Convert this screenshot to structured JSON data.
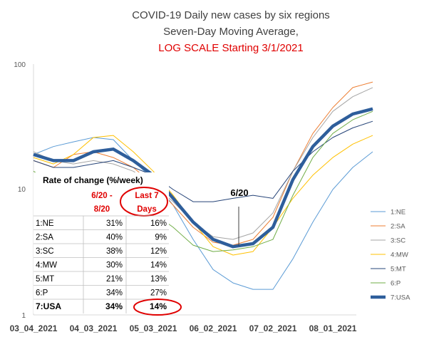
{
  "chart_data": {
    "type": "line",
    "title_lines": [
      "COVID-19 Daily new cases by six regions",
      "Seven-Day Moving Average,",
      "LOG SCALE Starting 3/1/2021"
    ],
    "title_colors": [
      "#404040",
      "#404040",
      "#e00000"
    ],
    "y_scale": "log",
    "ylim": [
      1,
      100
    ],
    "y_ticks": [
      "1",
      "10",
      "100"
    ],
    "x_ticks": [
      "03_04_2021",
      "04_03_2021",
      "05_03_2021",
      "06_02_2021",
      "07_02_2021",
      "08_01_2021"
    ],
    "x": [
      "2021-03-04",
      "2021-03-14",
      "2021-03-24",
      "2021-04-03",
      "2021-04-13",
      "2021-04-23",
      "2021-05-03",
      "2021-05-13",
      "2021-05-23",
      "2021-06-02",
      "2021-06-12",
      "2021-06-22",
      "2021-07-02",
      "2021-07-12",
      "2021-07-22",
      "2021-08-01",
      "2021-08-11",
      "2021-08-21"
    ],
    "series": [
      {
        "name": "1:NE",
        "color": "#5b9bd5",
        "width": 1,
        "values": [
          19.0,
          22.0,
          24.0,
          26.0,
          25.0,
          17.0,
          12.0,
          7.5,
          4.0,
          2.3,
          1.8,
          1.6,
          1.6,
          2.8,
          5.5,
          10.0,
          15.0,
          20.0
        ]
      },
      {
        "name": "2:SA",
        "color": "#ed7d31",
        "width": 1,
        "values": [
          17.0,
          15.0,
          19.0,
          20.0,
          18.0,
          15.0,
          11.0,
          7.5,
          5.0,
          3.8,
          3.6,
          4.0,
          6.0,
          14.0,
          28.0,
          45.0,
          65.0,
          72.0
        ]
      },
      {
        "name": "3:SC",
        "color": "#a5a5a5",
        "width": 1,
        "values": [
          20.0,
          17.0,
          16.0,
          17.0,
          16.0,
          14.0,
          11.0,
          8.0,
          5.5,
          4.2,
          4.0,
          4.5,
          6.5,
          14.0,
          26.0,
          42.0,
          55.0,
          65.0
        ]
      },
      {
        "name": "4:MW",
        "color": "#ffc000",
        "width": 1,
        "values": [
          18.0,
          16.0,
          19.0,
          26.0,
          27.0,
          20.0,
          14.0,
          9.0,
          5.5,
          3.5,
          3.0,
          3.2,
          5.0,
          8.5,
          13.0,
          18.0,
          23.0,
          27.0
        ]
      },
      {
        "name": "5:MT",
        "color": "#264478",
        "width": 1,
        "values": [
          17.0,
          15.0,
          15.0,
          16.0,
          17.0,
          15.0,
          13.0,
          10.0,
          8.0,
          8.0,
          8.5,
          9.0,
          8.5,
          14.0,
          20.0,
          26.0,
          31.0,
          35.0
        ]
      },
      {
        "name": "6:P",
        "color": "#70ad47",
        "width": 1,
        "values": [
          14.0,
          11.0,
          9.5,
          9.0,
          8.5,
          7.5,
          6.5,
          5.0,
          3.6,
          3.2,
          3.3,
          3.5,
          4.0,
          9.0,
          18.0,
          28.0,
          36.0,
          42.0
        ]
      },
      {
        "name": "7:USA",
        "color": "#2e5e9b",
        "width": 4.5,
        "values": [
          19.0,
          17.0,
          17.0,
          20.0,
          21.0,
          17.0,
          13.0,
          8.5,
          5.5,
          4.0,
          3.5,
          3.7,
          5.0,
          12.0,
          22.0,
          32.0,
          40.0,
          44.0
        ]
      }
    ],
    "legend_position": "right",
    "grid": false,
    "annotations": [
      {
        "text": "6/20",
        "x": "2021-06-20"
      }
    ]
  },
  "rate_table": {
    "title": "Rate of change (%/week)",
    "col1_header": [
      "6/20 -",
      "8/20"
    ],
    "col2_header": [
      "Last 7",
      "Days"
    ],
    "rows": [
      {
        "region": "1:NE",
        "c1": "31%",
        "c2": "16%"
      },
      {
        "region": "2:SA",
        "c1": "40%",
        "c2": "9%"
      },
      {
        "region": "3:SC",
        "c1": "38%",
        "c2": "12%"
      },
      {
        "region": "4:MW",
        "c1": "30%",
        "c2": "14%"
      },
      {
        "region": "5:MT",
        "c1": "21%",
        "c2": "13%"
      },
      {
        "region": "6:P",
        "c1": "34%",
        "c2": "27%"
      },
      {
        "region": "7:USA",
        "c1": "34%",
        "c2": "14%"
      }
    ]
  }
}
